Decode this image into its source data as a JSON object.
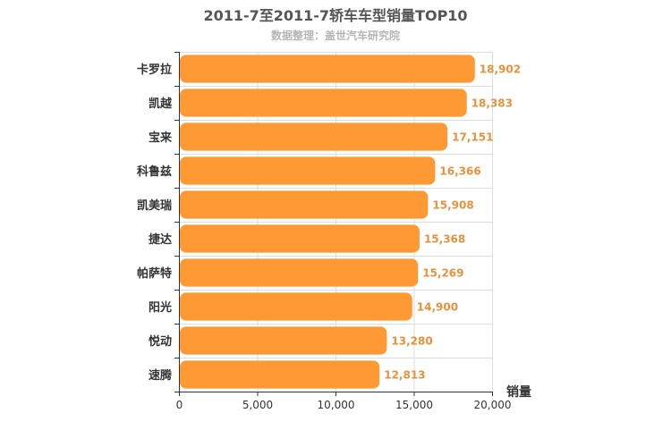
{
  "chart_data": {
    "type": "bar",
    "orientation": "horizontal",
    "title": "2011-7至2011-7轿车车型销量TOP10",
    "subtitle": "数据整理：盖世汽车研究院",
    "xlabel": "销量",
    "ylabel": "",
    "categories": [
      "卡罗拉",
      "凯越",
      "宝来",
      "科鲁兹",
      "凯美瑞",
      "捷达",
      "帕萨特",
      "阳光",
      "悦动",
      "速腾"
    ],
    "values": [
      18902,
      18383,
      17151,
      16366,
      15908,
      15368,
      15269,
      14900,
      13280,
      12813
    ],
    "value_labels": [
      "18,902",
      "18,383",
      "17,151",
      "16,366",
      "15,908",
      "15,368",
      "15,269",
      "14,900",
      "13,280",
      "12,813"
    ],
    "xlim": [
      0,
      20000
    ],
    "x_ticks": [
      0,
      5000,
      10000,
      15000,
      20000
    ],
    "x_tick_labels": [
      "0",
      "5,000",
      "10,000",
      "15,000",
      "20,000"
    ],
    "grid": true,
    "legend": "none",
    "bar_color": "#ff9933",
    "value_label_color": "#e8913a"
  }
}
